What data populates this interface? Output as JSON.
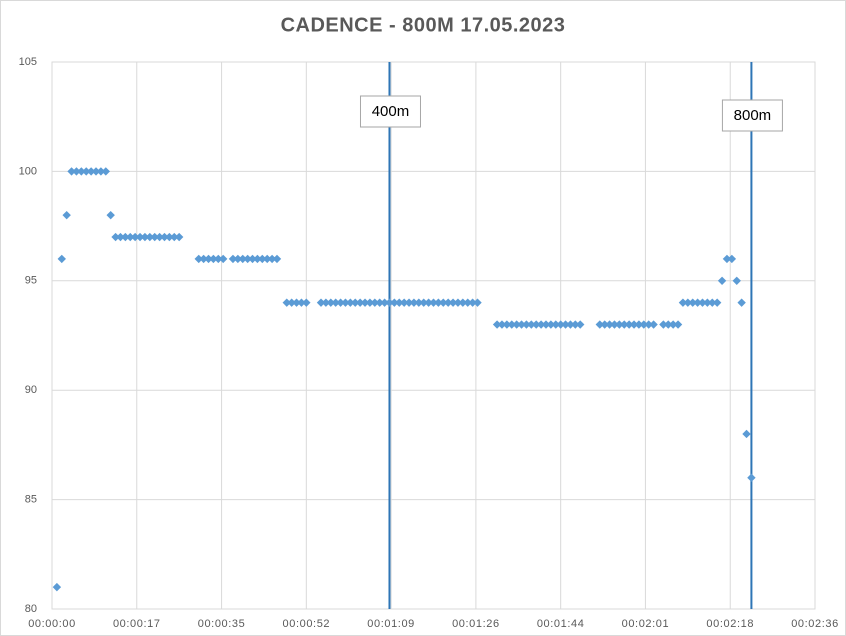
{
  "chart_data": {
    "type": "scatter",
    "title": "CADENCE - 800M 17.05.2023",
    "color": "#5b9bd5",
    "grid": true,
    "x": [
      1,
      2,
      3,
      4,
      5,
      6,
      7,
      8,
      9,
      10,
      11,
      12,
      13,
      14,
      15,
      16,
      17,
      18,
      19,
      20,
      21,
      22,
      23,
      24,
      25,
      26,
      30,
      31,
      32,
      33,
      34,
      35,
      37,
      38,
      39,
      40,
      41,
      42,
      43,
      44,
      45,
      46,
      48,
      49,
      50,
      51,
      52,
      55,
      56,
      57,
      58,
      59,
      60,
      61,
      62,
      63,
      64,
      65,
      66,
      67,
      68,
      69,
      70,
      71,
      72,
      73,
      74,
      75,
      76,
      77,
      78,
      79,
      80,
      81,
      82,
      83,
      84,
      85,
      86,
      87,
      91,
      92,
      93,
      94,
      95,
      96,
      97,
      98,
      99,
      100,
      101,
      102,
      103,
      104,
      105,
      106,
      107,
      108,
      112,
      113,
      114,
      115,
      116,
      117,
      118,
      119,
      120,
      121,
      122,
      123,
      125,
      126,
      127,
      128,
      129,
      130,
      131,
      132,
      133,
      134,
      135,
      136,
      137,
      138,
      139,
      140,
      141,
      142,
      143
    ],
    "values": [
      81,
      96,
      98,
      100,
      100,
      100,
      100,
      100,
      100,
      100,
      100,
      98,
      97,
      97,
      97,
      97,
      97,
      97,
      97,
      97,
      97,
      97,
      97,
      97,
      97,
      97,
      96,
      96,
      96,
      96,
      96,
      96,
      96,
      96,
      96,
      96,
      96,
      96,
      96,
      96,
      96,
      96,
      94,
      94,
      94,
      94,
      94,
      94,
      94,
      94,
      94,
      94,
      94,
      94,
      94,
      94,
      94,
      94,
      94,
      94,
      94,
      94,
      94,
      94,
      94,
      94,
      94,
      94,
      94,
      94,
      94,
      94,
      94,
      94,
      94,
      94,
      94,
      94,
      94,
      94,
      93,
      93,
      93,
      93,
      93,
      93,
      93,
      93,
      93,
      93,
      93,
      93,
      93,
      93,
      93,
      93,
      93,
      93,
      93,
      93,
      93,
      93,
      93,
      93,
      93,
      93,
      93,
      93,
      93,
      93,
      93,
      93,
      93,
      93,
      94,
      94,
      94,
      94,
      94,
      94,
      94,
      94,
      95,
      96,
      96,
      95,
      94,
      88,
      86
    ],
    "xlim": [
      0,
      156
    ],
    "ylim": [
      80,
      105
    ],
    "yticks": [
      80,
      85,
      90,
      95,
      100,
      105
    ],
    "xticks": [
      {
        "value": 0,
        "label": "00:00:00"
      },
      {
        "value": 17.33,
        "label": "00:00:17"
      },
      {
        "value": 34.67,
        "label": "00:00:35"
      },
      {
        "value": 52,
        "label": "00:00:52"
      },
      {
        "value": 69.33,
        "label": "00:01:09"
      },
      {
        "value": 86.67,
        "label": "00:01:26"
      },
      {
        "value": 104,
        "label": "00:01:44"
      },
      {
        "value": 121.33,
        "label": "00:02:01"
      },
      {
        "value": 138.67,
        "label": "00:02:18"
      },
      {
        "value": 156,
        "label": "00:02:36"
      }
    ],
    "annotations": [
      {
        "x": 69,
        "label": "400m"
      },
      {
        "x": 143,
        "label": "800m"
      }
    ]
  }
}
